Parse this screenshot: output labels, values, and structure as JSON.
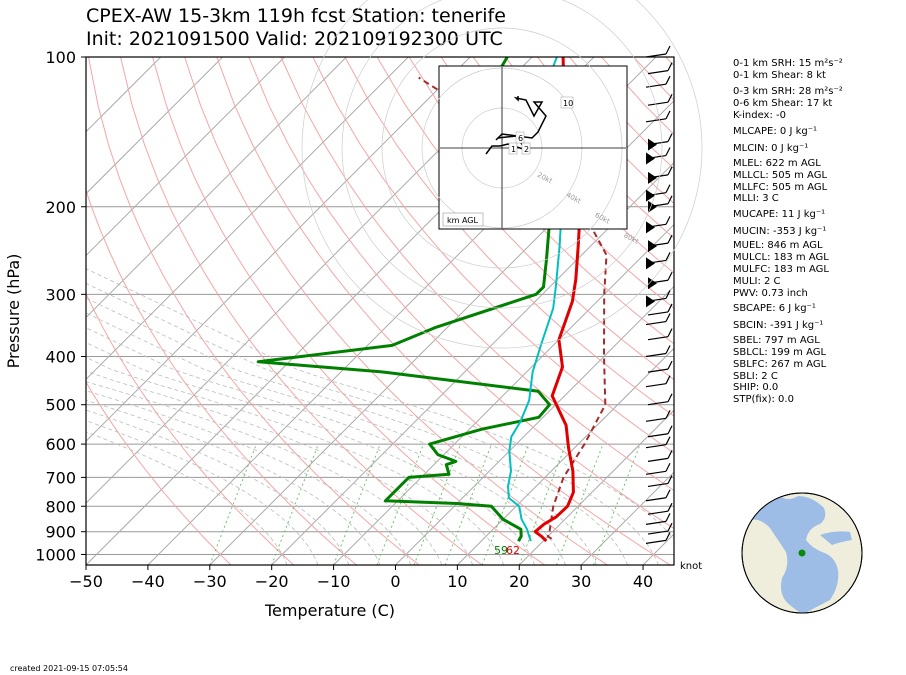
{
  "header": {
    "line1": "CPEX-AW 15-3km  119h fcst  Station: tenerife",
    "line2": "Init: 2021091500  Valid: 202109192300 UTC"
  },
  "footer": {
    "created": "created 2021-09-15 07:05:54"
  },
  "colors": {
    "temperature": "#e00000",
    "dewpoint": "#008000",
    "virtual_temp": "#00c0c0",
    "parcel": "#a52a2a",
    "dry_adiabat": "#f4a6a6",
    "moist_adiabat": "#bbbbbb",
    "mixing_ratio": "#6cc36c",
    "isotherm": "#aaaaaa",
    "isobar": "#999999",
    "ocean": "#9dbde6",
    "land": "#efeedd"
  },
  "indices": [
    {
      "label": "0-1 km SRH: 15 m²s⁻²"
    },
    {
      "label": "0-1 km Shear: 8 kt"
    },
    {
      "label": "0-3 km SRH: 28 m²s⁻²"
    },
    {
      "label": "0-6 km Shear: 17 kt"
    },
    {
      "label": "K-index: -0"
    },
    {
      "label": "MLCAPE: 0 J kg⁻¹"
    },
    {
      "label": "MLCIN: 0 J kg⁻¹"
    },
    {
      "label": "MLEL: 622 m AGL"
    },
    {
      "label": "MLLCL: 505 m AGL"
    },
    {
      "label": "MLLFC: 505 m AGL"
    },
    {
      "label": "MLLI: 3 C"
    },
    {
      "label": "MUCAPE: 11 J kg⁻¹"
    },
    {
      "label": "MUCIN: -353 J kg⁻¹"
    },
    {
      "label": "MUEL: 846 m AGL"
    },
    {
      "label": "MULCL: 183 m AGL"
    },
    {
      "label": "MULFC: 183 m AGL"
    },
    {
      "label": "MULI: 2 C"
    },
    {
      "label": "PWV: 0.73 inch"
    },
    {
      "label": "SBCAPE: 6 J kg⁻¹"
    },
    {
      "label": "SBCIN: -391 J kg⁻¹"
    },
    {
      "label": "SBEL: 797 m AGL"
    },
    {
      "label": "SBLCL: 199 m AGL"
    },
    {
      "label": "SBLFC: 267 m AGL"
    },
    {
      "label": "SBLI: 2 C"
    },
    {
      "label": "SHIP: 0.0"
    },
    {
      "label": "STP(fix): 0.0"
    }
  ],
  "chart_data": [
    {
      "type": "line",
      "title": "",
      "xlabel": "Temperature (C)",
      "ylabel": "Pressure (hPa)",
      "xlim": [
        -50,
        45
      ],
      "ylim": [
        1050,
        100
      ],
      "yscale": "log",
      "skew": "45 degrees",
      "xticks": [
        "−50",
        "−40",
        "−30",
        "−20",
        "−10",
        "0",
        "10",
        "20",
        "30",
        "40"
      ],
      "yticks": [
        "100",
        "200",
        "300",
        "400",
        "500",
        "600",
        "700",
        "800",
        "900",
        "1000"
      ],
      "wind_units_label": "knot",
      "surface_labels": {
        "temperature": "62",
        "dewpoint": "59"
      },
      "series": [
        {
          "key": "temperature",
          "points": [
            [
              20.5,
              940
            ],
            [
              19,
              920
            ],
            [
              17.2,
              900
            ],
            [
              17.4,
              870
            ],
            [
              18.2,
              840
            ],
            [
              18.3,
              800
            ],
            [
              17,
              750
            ],
            [
              13.5,
              680
            ],
            [
              9,
              610
            ],
            [
              5,
              550
            ],
            [
              -2,
              480
            ],
            [
              -5,
              420
            ],
            [
              -10,
              370
            ],
            [
              -14,
              310
            ],
            [
              -17,
              280
            ],
            [
              -22,
              240
            ],
            [
              -28,
              200
            ],
            [
              -34,
              170
            ],
            [
              -39,
              150
            ],
            [
              -43,
              130
            ],
            [
              -50,
              115
            ],
            [
              -55,
              100
            ]
          ]
        },
        {
          "key": "virtual_temp",
          "points": [
            [
              18,
              940
            ],
            [
              16.5,
              910
            ],
            [
              15.5,
              890
            ],
            [
              13,
              850
            ],
            [
              10.5,
              800
            ],
            [
              7.5,
              770
            ],
            [
              5.5,
              730
            ],
            [
              3.5,
              680
            ],
            [
              0,
              620
            ],
            [
              -2,
              580
            ],
            [
              -3,
              540
            ],
            [
              -5,
              490
            ],
            [
              -9,
              430
            ],
            [
              -12,
              380
            ],
            [
              -16,
              320
            ],
            [
              -19,
              290
            ],
            [
              -25,
              240
            ],
            [
              -31,
              200
            ],
            [
              -36,
              170
            ],
            [
              -42,
              150
            ],
            [
              -44,
              130
            ],
            [
              -53,
              115
            ],
            [
              -56,
              100
            ]
          ]
        },
        {
          "key": "dewpoint",
          "points": [
            [
              16,
              940
            ],
            [
              15.7,
              920
            ],
            [
              14.5,
              890
            ],
            [
              10,
              850
            ],
            [
              6,
              800
            ],
            [
              0,
              790
            ],
            [
              -12,
              780
            ],
            [
              -12,
              700
            ],
            [
              -6,
              690
            ],
            [
              -8,
              660
            ],
            [
              -7,
              650
            ],
            [
              -11,
              630
            ],
            [
              -14,
              600
            ],
            [
              -8,
              560
            ],
            [
              -0.7,
              530
            ],
            [
              -1,
              500
            ],
            [
              -5,
              470
            ],
            [
              -33,
              430
            ],
            [
              -55,
              410
            ],
            [
              -36,
              380
            ],
            [
              -32,
              350
            ],
            [
              -21,
              300
            ],
            [
              -21,
              290
            ],
            [
              -25,
              255
            ],
            [
              -32,
              205
            ],
            [
              -41,
              170
            ],
            [
              -56,
              148
            ],
            [
              -58,
              130
            ],
            [
              -62,
              115
            ],
            [
              -64,
              100
            ]
          ]
        },
        {
          "key": "parcel",
          "points": [
            [
              21,
              930
            ],
            [
              20,
              920
            ],
            [
              19.5,
              900
            ],
            [
              18.5,
              870
            ],
            [
              16,
              800
            ],
            [
              13,
              700
            ],
            [
              11,
              600
            ],
            [
              8,
              500
            ],
            [
              0,
              400
            ],
            [
              -10,
              300
            ],
            [
              -16,
              250
            ],
            [
              -28,
              200
            ],
            [
              -45,
              160
            ],
            [
              -60,
              130
            ],
            [
              -75,
              110
            ]
          ]
        }
      ]
    },
    {
      "type": "line",
      "title": "",
      "xlabel": "",
      "ylabel": "",
      "ring_labels": [
        "20kt",
        "40kt",
        "60kt",
        "80kt"
      ],
      "corner_label": "km AGL",
      "hodograph_labels": [
        "1",
        "2",
        "6",
        "10"
      ],
      "points_kt": [
        [
          -8,
          -3
        ],
        [
          -5,
          1
        ],
        [
          -1,
          1
        ],
        [
          3,
          2
        ],
        [
          12,
          -1
        ],
        [
          7,
          6
        ],
        [
          -2,
          5
        ],
        [
          -3,
          4
        ],
        [
          0,
          7
        ],
        [
          15,
          5
        ],
        [
          18,
          8
        ],
        [
          22,
          16
        ],
        [
          16,
          23
        ],
        [
          20,
          23
        ],
        [
          16,
          16
        ],
        [
          12,
          24
        ],
        [
          7,
          25
        ],
        [
          8,
          24
        ],
        [
          8,
          26
        ]
      ]
    }
  ],
  "wind_barbs": [
    {
      "p": 950
    },
    {
      "p": 910
    },
    {
      "p": 870
    },
    {
      "p": 830
    },
    {
      "p": 780
    },
    {
      "p": 730
    },
    {
      "p": 690
    },
    {
      "p": 650
    },
    {
      "p": 610
    },
    {
      "p": 580
    },
    {
      "p": 540
    },
    {
      "p": 500
    },
    {
      "p": 460
    },
    {
      "p": 430
    },
    {
      "p": 400
    },
    {
      "p": 370
    },
    {
      "p": 345
    },
    {
      "p": 330
    },
    {
      "p": 310
    },
    {
      "p": 285
    },
    {
      "p": 260
    },
    {
      "p": 240
    },
    {
      "p": 220
    },
    {
      "p": 200
    },
    {
      "p": 190
    },
    {
      "p": 175
    },
    {
      "p": 160
    },
    {
      "p": 150
    },
    {
      "p": 135
    },
    {
      "p": 125
    },
    {
      "p": 115
    },
    {
      "p": 108
    },
    {
      "p": 100
    }
  ]
}
